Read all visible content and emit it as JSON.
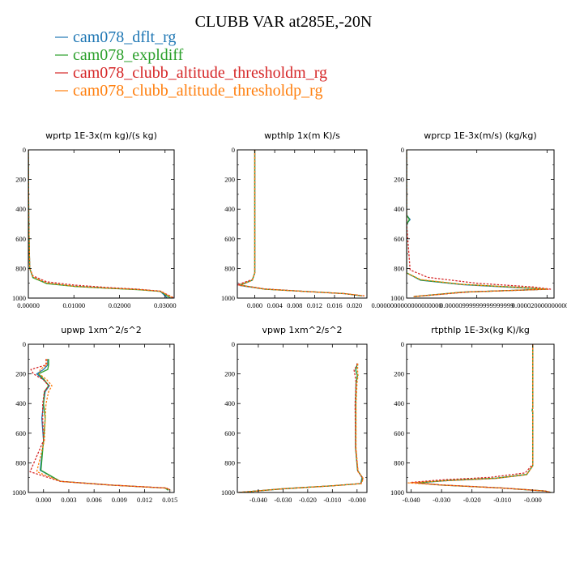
{
  "figure": {
    "title": "CLUBB VAR at285E,-20N",
    "legend": [
      {
        "label": "cam078_dflt_rg",
        "color": "#1f77b4"
      },
      {
        "label": "cam078_expldiff",
        "color": "#2ca02c"
      },
      {
        "label": "cam078_clubb_altitude_thresholdm_rg",
        "color": "#d62728"
      },
      {
        "label": "cam078_clubb_altitude_thresholdp_rg",
        "color": "#ff7f0e"
      }
    ]
  },
  "chart_data": [
    {
      "type": "line",
      "title": "wprtp  1E-3x(m kg)/(s kg)",
      "xlim": [
        0,
        0.032
      ],
      "ylim": [
        1000,
        0
      ],
      "xticks": [
        0,
        0.01,
        0.02,
        0.03
      ],
      "xtick_labels": [
        "0.00000",
        "0.01000",
        "0.02000",
        "0.03000"
      ],
      "yticks": [
        0,
        200,
        400,
        600,
        800,
        1000
      ],
      "ytick_labels": [
        "0",
        "200",
        "400",
        "600",
        "800",
        "1000"
      ],
      "series": [
        {
          "name": "cam078_dflt_rg",
          "color": "#1f77b4",
          "dash": "solid",
          "x": [
            0,
            0.0001,
            0.0003,
            0.001,
            0.004,
            0.01,
            0.017,
            0.024,
            0.029,
            0.0305
          ],
          "y": [
            0,
            500,
            800,
            860,
            900,
            920,
            932,
            942,
            955,
            1000
          ]
        },
        {
          "name": "cam078_expldiff",
          "color": "#2ca02c",
          "dash": "solid",
          "x": [
            0,
            0.0001,
            0.0003,
            0.001,
            0.004,
            0.01,
            0.017,
            0.024,
            0.029,
            0.0312
          ],
          "y": [
            0,
            500,
            800,
            862,
            902,
            921,
            933,
            943,
            955,
            1000
          ]
        },
        {
          "name": "cam078_clubb_altitude_thresholdm_rg",
          "color": "#d62728",
          "dash": "dashed",
          "x": [
            0,
            0.0001,
            0.0003,
            0.001,
            0.004,
            0.01,
            0.017,
            0.024,
            0.029,
            0.032
          ],
          "y": [
            0,
            500,
            800,
            850,
            890,
            912,
            928,
            940,
            953,
            1000
          ]
        },
        {
          "name": "cam078_clubb_altitude_thresholdp_rg",
          "color": "#ff7f0e",
          "dash": "dashed",
          "x": [
            0,
            0.0001,
            0.0003,
            0.001,
            0.004,
            0.01,
            0.017,
            0.024,
            0.029,
            0.0318
          ],
          "y": [
            0,
            500,
            800,
            858,
            898,
            920,
            932,
            942,
            954,
            1000
          ]
        }
      ]
    },
    {
      "type": "line",
      "title": "wpthlp  1x(m K)/s",
      "xlim": [
        -0.0035,
        0.0225
      ],
      "ylim": [
        1000,
        0
      ],
      "xticks": [
        0,
        0.004,
        0.008,
        0.012,
        0.016,
        0.02
      ],
      "xtick_labels": [
        "0.000",
        "0.004",
        "0.008",
        "0.012",
        "0.016",
        "0.020"
      ],
      "yticks": [
        0,
        200,
        400,
        600,
        800,
        1000
      ],
      "ytick_labels": [
        "0",
        "200",
        "400",
        "600",
        "800",
        "1000"
      ],
      "series": [
        {
          "name": "cam078_dflt_rg",
          "color": "#1f77b4",
          "dash": "solid",
          "x": [
            0,
            0,
            0,
            -0.0005,
            -0.003,
            0.002,
            0.01,
            0.018,
            0.0215
          ],
          "y": [
            0,
            600,
            830,
            880,
            915,
            940,
            955,
            970,
            985
          ]
        },
        {
          "name": "cam078_expldiff",
          "color": "#2ca02c",
          "dash": "solid",
          "x": [
            0,
            0,
            0,
            -0.0005,
            -0.003,
            0.002,
            0.01,
            0.018,
            0.0215
          ],
          "y": [
            0,
            600,
            830,
            878,
            912,
            940,
            955,
            970,
            985
          ]
        },
        {
          "name": "cam078_clubb_altitude_thresholdm_rg",
          "color": "#d62728",
          "dash": "dashed",
          "x": [
            0,
            0,
            0,
            -0.0005,
            -0.0035,
            0.002,
            0.01,
            0.018,
            0.022
          ],
          "y": [
            0,
            600,
            830,
            875,
            910,
            938,
            955,
            970,
            985
          ]
        },
        {
          "name": "cam078_clubb_altitude_thresholdp_rg",
          "color": "#ff7f0e",
          "dash": "dashed",
          "x": [
            0,
            0,
            0,
            -0.0005,
            -0.003,
            0.002,
            0.01,
            0.018,
            0.022
          ],
          "y": [
            0,
            600,
            830,
            880,
            914,
            940,
            955,
            970,
            985
          ]
        }
      ]
    },
    {
      "type": "line",
      "title": "wprcp  1E-3x(m/s) (kg/kg)",
      "xlim": [
        0,
        2.1e-05
      ],
      "ylim": [
        1000,
        0
      ],
      "xticks": [
        0,
        1e-05,
        2e-05
      ],
      "xtick_labels": [
        "0.0000000000000000000",
        "0.00000999999999999999",
        "0.0000200000000000000"
      ],
      "yticks": [
        0,
        200,
        400,
        600,
        800,
        1000
      ],
      "ytick_labels": [
        "0",
        "200",
        "400",
        "600",
        "800",
        "1000"
      ],
      "series": [
        {
          "name": "cam078_dflt_rg",
          "color": "#1f77b4",
          "dash": "solid",
          "x": [
            0,
            0,
            5e-07,
            0,
            0,
            2e-06,
            8e-06,
            1.6e-05,
            2e-05,
            8e-06,
            1e-06
          ],
          "y": [
            0,
            440,
            470,
            500,
            830,
            880,
            910,
            930,
            940,
            960,
            990
          ]
        },
        {
          "name": "cam078_expldiff",
          "color": "#2ca02c",
          "dash": "solid",
          "x": [
            0,
            0,
            4e-07,
            0,
            0,
            2e-06,
            8e-06,
            1.6e-05,
            2e-05,
            8e-06,
            1e-06
          ],
          "y": [
            0,
            440,
            470,
            500,
            830,
            878,
            908,
            928,
            940,
            960,
            990
          ]
        },
        {
          "name": "cam078_clubb_altitude_thresholdm_rg",
          "color": "#d62728",
          "dash": "dashed",
          "x": [
            0,
            0,
            0,
            0,
            5e-07,
            3e-06,
            1e-05,
            1.8e-05,
            2.05e-05,
            9e-06,
            1e-06
          ],
          "y": [
            0,
            440,
            470,
            500,
            810,
            860,
            900,
            925,
            940,
            958,
            990
          ]
        },
        {
          "name": "cam078_clubb_altitude_thresholdp_rg",
          "color": "#ff7f0e",
          "dash": "dashed",
          "x": [
            0,
            0,
            0,
            0,
            0,
            2e-06,
            8e-06,
            1.6e-05,
            2e-05,
            8e-06,
            1e-06
          ],
          "y": [
            0,
            440,
            470,
            500,
            830,
            875,
            908,
            928,
            940,
            960,
            990
          ]
        }
      ]
    },
    {
      "type": "line",
      "title": "upwp  1xm^2/s^2",
      "xlim": [
        -0.0018,
        0.0155
      ],
      "ylim": [
        1000,
        0
      ],
      "xticks": [
        0,
        0.003,
        0.006,
        0.009,
        0.012,
        0.015
      ],
      "xtick_labels": [
        "0.000",
        "0.003",
        "0.006",
        "0.009",
        "0.012",
        "0.015"
      ],
      "yticks": [
        0,
        200,
        400,
        600,
        800,
        1000
      ],
      "ytick_labels": [
        "0",
        "200",
        "400",
        "600",
        "800",
        "1000"
      ],
      "series": [
        {
          "name": "cam078_dflt_rg",
          "color": "#1f77b4",
          "dash": "solid",
          "x": [
            0.0005,
            0.0005,
            0.0,
            -0.0008,
            0.0,
            0.0007,
            0.0002,
            0.0,
            -0.0002,
            0.0,
            -0.0004,
            0.002,
            0.008,
            0.0145,
            0.0148
          ],
          "y": [
            100,
            140,
            170,
            200,
            240,
            280,
            320,
            400,
            500,
            650,
            850,
            925,
            950,
            970,
            985
          ]
        },
        {
          "name": "cam078_expldiff",
          "color": "#2ca02c",
          "dash": "solid",
          "x": [
            0.0006,
            0.0006,
            0.0005,
            -0.0006,
            0.0001,
            0.0006,
            0.0001,
            0.0,
            0.0002,
            0.0,
            -0.0003,
            0.002,
            0.008,
            0.0144,
            0.0148
          ],
          "y": [
            100,
            140,
            170,
            200,
            240,
            280,
            320,
            400,
            500,
            650,
            850,
            925,
            950,
            970,
            985
          ]
        },
        {
          "name": "cam078_clubb_altitude_thresholdm_rg",
          "color": "#d62728",
          "dash": "dashed",
          "x": [
            0.0003,
            0.0003,
            -0.0015,
            -0.0012,
            0.0,
            0.0006,
            0.0001,
            -0.0001,
            -0.0001,
            0.0,
            -0.0016,
            0.002,
            0.008,
            0.0146,
            0.015
          ],
          "y": [
            100,
            140,
            170,
            200,
            240,
            280,
            320,
            400,
            500,
            650,
            860,
            925,
            950,
            970,
            985
          ]
        },
        {
          "name": "cam078_clubb_altitude_thresholdp_rg",
          "color": "#ff7f0e",
          "dash": "dashed",
          "x": [
            0.0004,
            0.0004,
            -0.0004,
            -0.0005,
            0.0004,
            0.001,
            0.0006,
            0.0003,
            0.0002,
            0.0001,
            -0.0008,
            0.002,
            0.008,
            0.0145,
            0.0152
          ],
          "y": [
            100,
            140,
            170,
            200,
            240,
            280,
            320,
            400,
            500,
            650,
            860,
            925,
            950,
            970,
            985
          ]
        }
      ]
    },
    {
      "type": "line",
      "title": "vpwp  1xm^2/s^2",
      "xlim": [
        -0.0485,
        0.004
      ],
      "ylim": [
        1000,
        0
      ],
      "xticks": [
        -0.04,
        -0.03,
        -0.02,
        -0.01,
        0
      ],
      "xtick_labels": [
        "-0.040",
        "-0.030",
        "-0.020",
        "-0.010",
        "-0.000"
      ],
      "yticks": [
        0,
        200,
        400,
        600,
        800,
        1000
      ],
      "ytick_labels": [
        "0",
        "200",
        "400",
        "600",
        "800",
        "1000"
      ],
      "series": [
        {
          "name": "cam078_dflt_rg",
          "color": "#1f77b4",
          "dash": "solid",
          "x": [
            0.0,
            0.0,
            -0.0006,
            0.0002,
            -0.0004,
            -0.0006,
            -0.0006,
            0.0002,
            0.002,
            0.0015,
            -0.01,
            -0.03,
            -0.048
          ],
          "y": [
            130,
            140,
            175,
            210,
            260,
            400,
            700,
            850,
            900,
            940,
            955,
            975,
            1000
          ]
        },
        {
          "name": "cam078_expldiff",
          "color": "#2ca02c",
          "dash": "solid",
          "x": [
            0.0,
            0.0,
            -0.0005,
            0.0001,
            -0.0004,
            -0.0005,
            -0.0006,
            0.0002,
            0.0022,
            0.0016,
            -0.01,
            -0.03,
            -0.048
          ],
          "y": [
            130,
            140,
            175,
            210,
            260,
            400,
            700,
            850,
            900,
            940,
            955,
            975,
            1000
          ]
        },
        {
          "name": "cam078_clubb_altitude_thresholdm_rg",
          "color": "#d62728",
          "dash": "dashed",
          "x": [
            0.0,
            0.0,
            -0.0012,
            -0.0008,
            -0.0004,
            -0.0008,
            -0.0006,
            0.0004,
            0.0025,
            0.0015,
            -0.01,
            -0.03,
            -0.048
          ],
          "y": [
            130,
            140,
            175,
            210,
            260,
            400,
            700,
            860,
            905,
            940,
            955,
            975,
            1000
          ]
        },
        {
          "name": "cam078_clubb_altitude_thresholdp_rg",
          "color": "#ff7f0e",
          "dash": "dashed",
          "x": [
            0.0003,
            0.0003,
            0.0002,
            0.0004,
            0.0,
            -0.0004,
            -0.0004,
            0.0004,
            0.0025,
            0.0018,
            -0.01,
            -0.03,
            -0.048
          ],
          "y": [
            130,
            140,
            175,
            210,
            260,
            400,
            700,
            860,
            905,
            940,
            955,
            975,
            1000
          ]
        }
      ]
    },
    {
      "type": "line",
      "title": "rtpthlp  1E-3x(kg K)/kg",
      "xlim": [
        -0.0415,
        0.007
      ],
      "ylim": [
        1000,
        0
      ],
      "xticks": [
        -0.04,
        -0.03,
        -0.02,
        -0.01,
        0
      ],
      "xtick_labels": [
        "-0.040",
        "-0.030",
        "-0.020",
        "-0.010",
        "-0.000"
      ],
      "yticks": [
        0,
        200,
        400,
        600,
        800,
        1000
      ],
      "ytick_labels": [
        "0",
        "200",
        "400",
        "600",
        "800",
        "1000"
      ],
      "series": [
        {
          "name": "cam078_dflt_rg",
          "color": "#1f77b4",
          "dash": "solid",
          "x": [
            0,
            0,
            -0.0002,
            0,
            0,
            -0.002,
            -0.012,
            -0.028,
            -0.038,
            -0.03,
            -0.01,
            0.004,
            0.006
          ],
          "y": [
            0,
            430,
            445,
            460,
            820,
            880,
            905,
            920,
            935,
            950,
            970,
            990,
            1000
          ]
        },
        {
          "name": "cam078_expldiff",
          "color": "#2ca02c",
          "dash": "solid",
          "x": [
            0,
            0,
            -0.0002,
            0,
            0,
            -0.002,
            -0.012,
            -0.028,
            -0.038,
            -0.03,
            -0.01,
            0.004,
            0.006
          ],
          "y": [
            0,
            430,
            445,
            460,
            820,
            878,
            903,
            918,
            935,
            950,
            970,
            990,
            1000
          ]
        },
        {
          "name": "cam078_clubb_altitude_thresholdm_rg",
          "color": "#d62728",
          "dash": "dashed",
          "x": [
            0,
            0,
            0,
            0,
            0,
            -0.0025,
            -0.014,
            -0.03,
            -0.04,
            -0.031,
            -0.01,
            0.004,
            0.006
          ],
          "y": [
            0,
            430,
            445,
            460,
            810,
            868,
            898,
            915,
            932,
            948,
            970,
            990,
            1000
          ]
        },
        {
          "name": "cam078_clubb_altitude_thresholdp_rg",
          "color": "#ff7f0e",
          "dash": "dashed",
          "x": [
            0,
            0,
            0,
            0,
            0,
            -0.002,
            -0.012,
            -0.028,
            -0.041,
            -0.03,
            -0.01,
            0.004,
            0.006
          ],
          "y": [
            0,
            430,
            445,
            460,
            820,
            880,
            905,
            920,
            935,
            950,
            970,
            990,
            1000
          ]
        }
      ]
    }
  ]
}
